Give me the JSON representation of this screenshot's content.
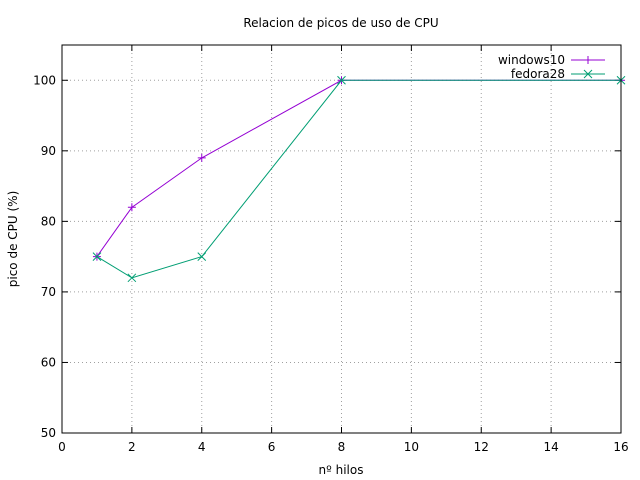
{
  "chart_data": {
    "type": "line",
    "title": "Relacion de picos de uso de CPU",
    "xlabel": "nº hilos",
    "ylabel": "pico de CPU (%)",
    "xlim": [
      0,
      16
    ],
    "ylim": [
      50,
      105
    ],
    "xticks": [
      0,
      2,
      4,
      6,
      8,
      10,
      12,
      14,
      16
    ],
    "yticks": [
      50,
      60,
      70,
      80,
      90,
      100
    ],
    "grid": true,
    "legend_position": "top-right",
    "series": [
      {
        "name": "windows10",
        "color": "#9400d3",
        "marker": "plus",
        "x": [
          1,
          2,
          4,
          8,
          16
        ],
        "y": [
          75,
          82,
          89,
          100,
          100
        ]
      },
      {
        "name": "fedora28",
        "color": "#009e73",
        "marker": "cross",
        "x": [
          1,
          2,
          4,
          8,
          16
        ],
        "y": [
          75,
          72,
          75,
          100,
          100
        ]
      }
    ]
  }
}
